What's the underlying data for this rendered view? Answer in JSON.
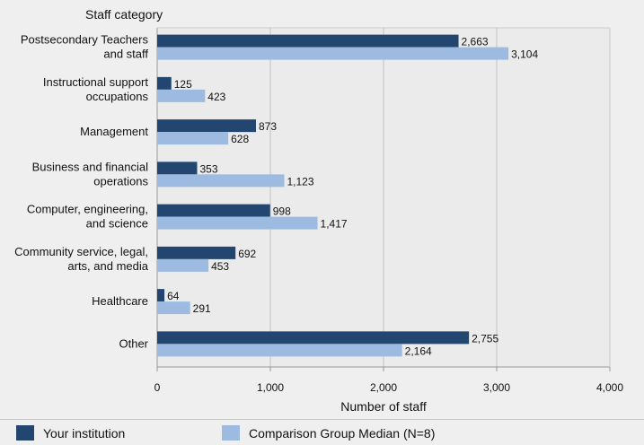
{
  "chart_data": {
    "type": "bar",
    "orientation": "horizontal",
    "title": "",
    "ylabel": "Staff category",
    "xlabel": "Number of staff",
    "categories": [
      [
        "Postsecondary Teachers",
        "and staff"
      ],
      [
        "Instructional support",
        "occupations"
      ],
      [
        "Management"
      ],
      [
        "Business and financial",
        "operations"
      ],
      [
        "Computer, engineering,",
        "and science"
      ],
      [
        "Community service, legal,",
        "arts, and media"
      ],
      [
        "Healthcare"
      ],
      [
        "Other"
      ]
    ],
    "series": [
      {
        "name": "Your institution",
        "color": "#22466f",
        "values": [
          2663,
          125,
          873,
          353,
          998,
          692,
          64,
          2755
        ],
        "labels": [
          "2,663",
          "125",
          "873",
          "353",
          "998",
          "692",
          "64",
          "2,755"
        ]
      },
      {
        "name": "Comparison Group Median (N=8)",
        "color": "#9dbbe0",
        "values": [
          3104,
          423,
          628,
          1123,
          1417,
          453,
          291,
          2164
        ],
        "labels": [
          "3,104",
          "423",
          "628",
          "1,123",
          "1,417",
          "453",
          "291",
          "2,164"
        ]
      }
    ],
    "xlim": [
      0,
      4000
    ],
    "xticks": [
      0,
      1000,
      2000,
      3000,
      4000
    ],
    "xtick_labels": [
      "0",
      "1,000",
      "2,000",
      "3,000",
      "4,000"
    ],
    "grid": true,
    "legend_position": "bottom"
  }
}
